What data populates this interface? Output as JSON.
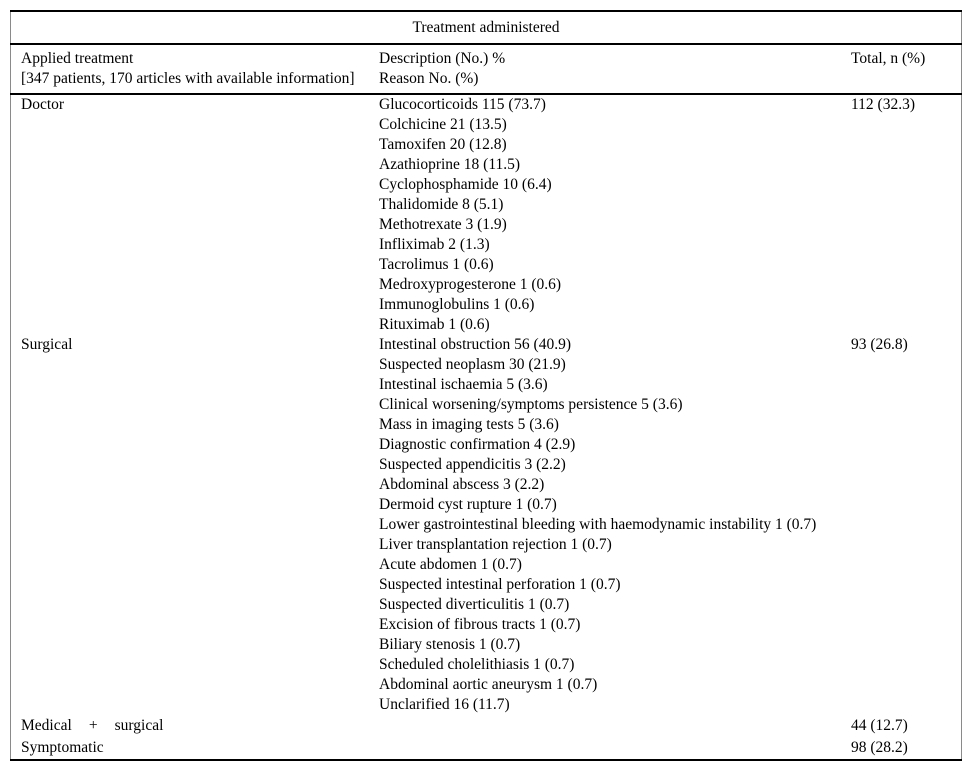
{
  "table": {
    "caption": "Treatment administered",
    "columns": {
      "applied_line1": "Applied treatment",
      "applied_line2": "[347 patients, 170 articles with available information]",
      "description_line1": "Description (No.) %",
      "description_line2": "Reason No. (%)",
      "total": "Total, n (%)"
    },
    "groups": [
      {
        "treatment": "Doctor",
        "total": "112 (32.3)",
        "details": [
          "Glucocorticoids 115 (73.7)",
          "Colchicine 21 (13.5)",
          "Tamoxifen 20 (12.8)",
          "Azathioprine 18 (11.5)",
          "Cyclophosphamide 10 (6.4)",
          "Thalidomide 8 (5.1)",
          "Methotrexate 3 (1.9)",
          "Infliximab 2 (1.3)",
          "Tacrolimus 1 (0.6)",
          "Medroxyprogesterone 1 (0.6)",
          "Immunoglobulins 1 (0.6)",
          "Rituximab 1 (0.6)"
        ]
      },
      {
        "treatment": "Surgical",
        "total": "93 (26.8)",
        "details": [
          "Intestinal obstruction 56 (40.9)",
          "Suspected neoplasm 30 (21.9)",
          "Intestinal ischaemia 5 (3.6)",
          "Clinical worsening/symptoms persistence 5 (3.6)",
          "Mass in imaging tests 5 (3.6)",
          "Diagnostic confirmation 4 (2.9)",
          "Suspected appendicitis 3 (2.2)",
          "Abdominal abscess 3 (2.2)",
          "Dermoid cyst rupture 1 (0.7)",
          "Lower gastrointestinal bleeding with haemodynamic instability 1 (0.7)",
          "Liver transplantation rejection 1 (0.7)",
          "Acute abdomen 1 (0.7)",
          "Suspected intestinal perforation 1 (0.7)",
          "Suspected diverticulitis 1 (0.7)",
          "Excision of fibrous tracts 1 (0.7)",
          "Biliary stenosis 1 (0.7)",
          "Scheduled cholelithiasis 1 (0.7)",
          "Abdominal aortic aneurysm 1 (0.7)",
          "Unclarified 16 (11.7)"
        ]
      },
      {
        "treatment": "Medical + surgical",
        "total": "44 (12.7)",
        "details": []
      },
      {
        "treatment": "Symptomatic",
        "total": "98 (28.2)",
        "details": []
      }
    ]
  }
}
